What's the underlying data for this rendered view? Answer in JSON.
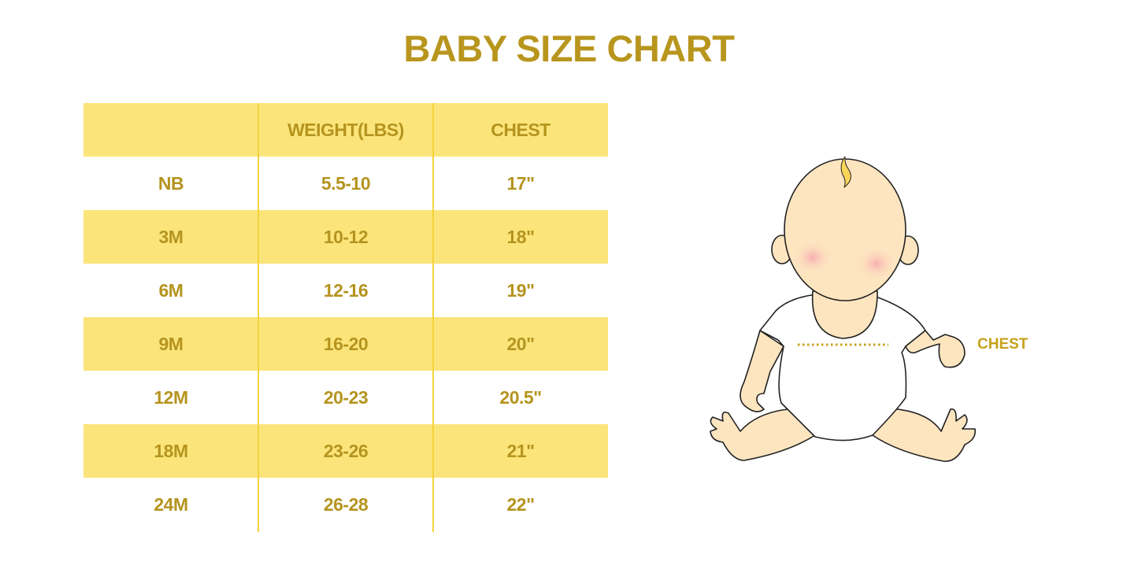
{
  "title": "BABY SIZE CHART",
  "table": {
    "headers": [
      "",
      "WEIGHT(LBS)",
      "CHEST"
    ],
    "rows": [
      [
        "NB",
        "5.5-10",
        "17\""
      ],
      [
        "3M",
        "10-12",
        "18\""
      ],
      [
        "6M",
        "12-16",
        "19\""
      ],
      [
        "9M",
        "16-20",
        "20\""
      ],
      [
        "12M",
        "20-23",
        "20.5\""
      ],
      [
        "18M",
        "23-26",
        "21\""
      ],
      [
        "24M",
        "26-28",
        "22\""
      ]
    ]
  },
  "illustration": {
    "chest_label": "CHEST"
  },
  "colors": {
    "text_gold": "#b5941f",
    "band_yellow": "#fbe57a",
    "divider_yellow": "#f5d23c",
    "skin": "#fde5c0"
  }
}
